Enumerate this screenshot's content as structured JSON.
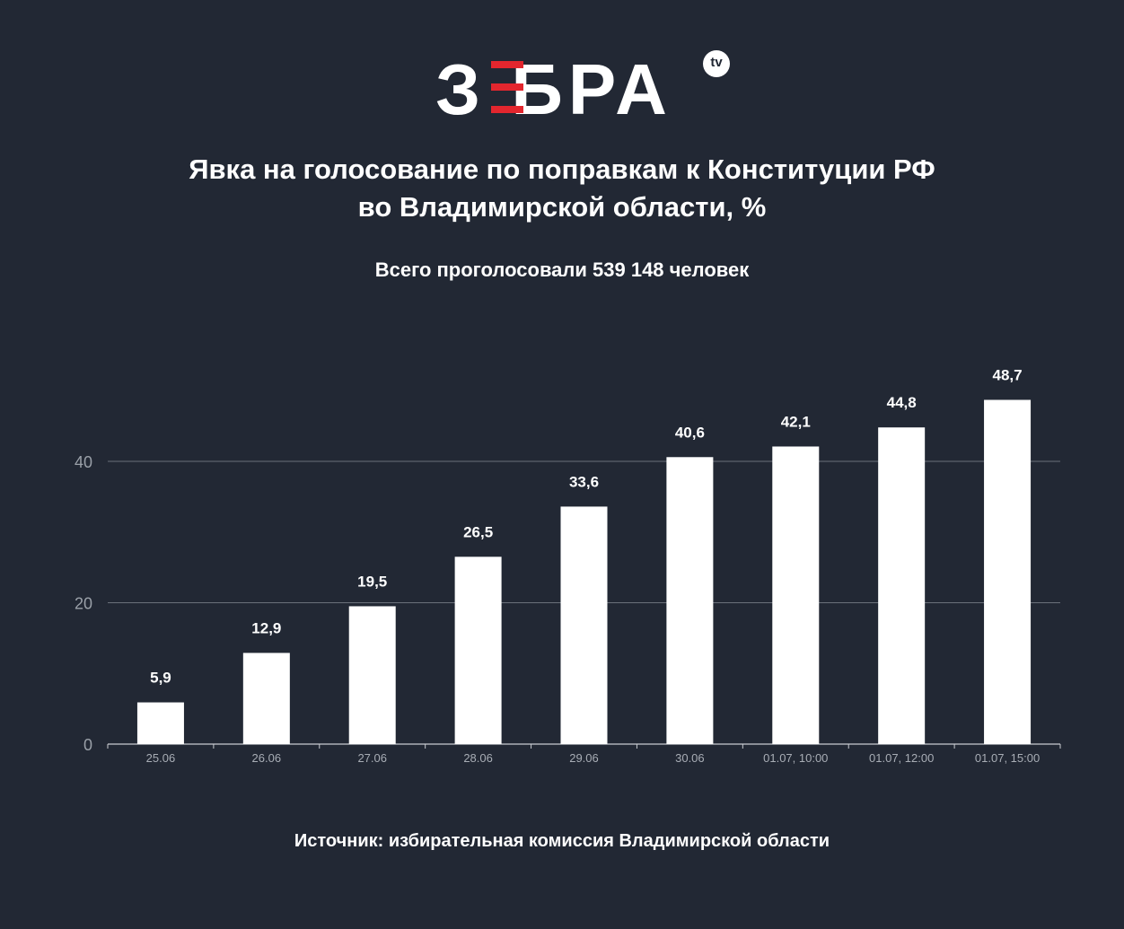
{
  "logo": {
    "text": "З БРА",
    "badge": "tv"
  },
  "title_line1": "Явка на голосование по поправкам к Конституции РФ",
  "title_line2": "во Владимирской области, %",
  "subtitle": "Всего проголосовали 539 148 человек",
  "source": "Источник: избирательная комиссия Владимирской области",
  "colors": {
    "background": "#222834",
    "bar": "#ffffff",
    "accent": "#e3262e"
  },
  "chart_data": {
    "type": "bar",
    "categories": [
      "25.06",
      "26.06",
      "27.06",
      "28.06",
      "29.06",
      "30.06",
      "01.07, 10:00",
      "01.07, 12:00",
      "01.07, 15:00"
    ],
    "values": [
      5.9,
      12.9,
      19.5,
      26.5,
      33.6,
      40.6,
      42.1,
      44.8,
      48.7
    ],
    "value_labels": [
      "5,9",
      "12,9",
      "19,5",
      "26,5",
      "33,6",
      "40,6",
      "42,1",
      "44,8",
      "48,7"
    ],
    "yticks": [
      0,
      20,
      40
    ],
    "ylim": [
      0,
      50
    ],
    "grid": true
  }
}
